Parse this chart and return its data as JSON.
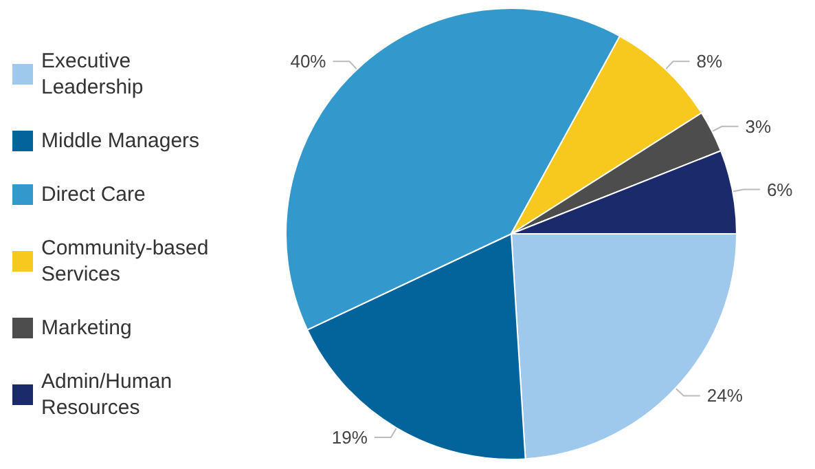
{
  "chart_data": {
    "type": "pie",
    "categories": [
      "Executive Leadership",
      "Middle Managers",
      "Direct Care",
      "Community-based Services",
      "Marketing",
      "Admin/Human Resources"
    ],
    "values": [
      24,
      19,
      40,
      8,
      3,
      6
    ],
    "colors": [
      "#9fc9ec",
      "#03649c",
      "#3399cc",
      "#f7c81e",
      "#4d4d4d",
      "#1b2a6b"
    ],
    "value_labels": [
      "24%",
      "19%",
      "40%",
      "8%",
      "3%",
      "6%"
    ],
    "legend": "left"
  }
}
